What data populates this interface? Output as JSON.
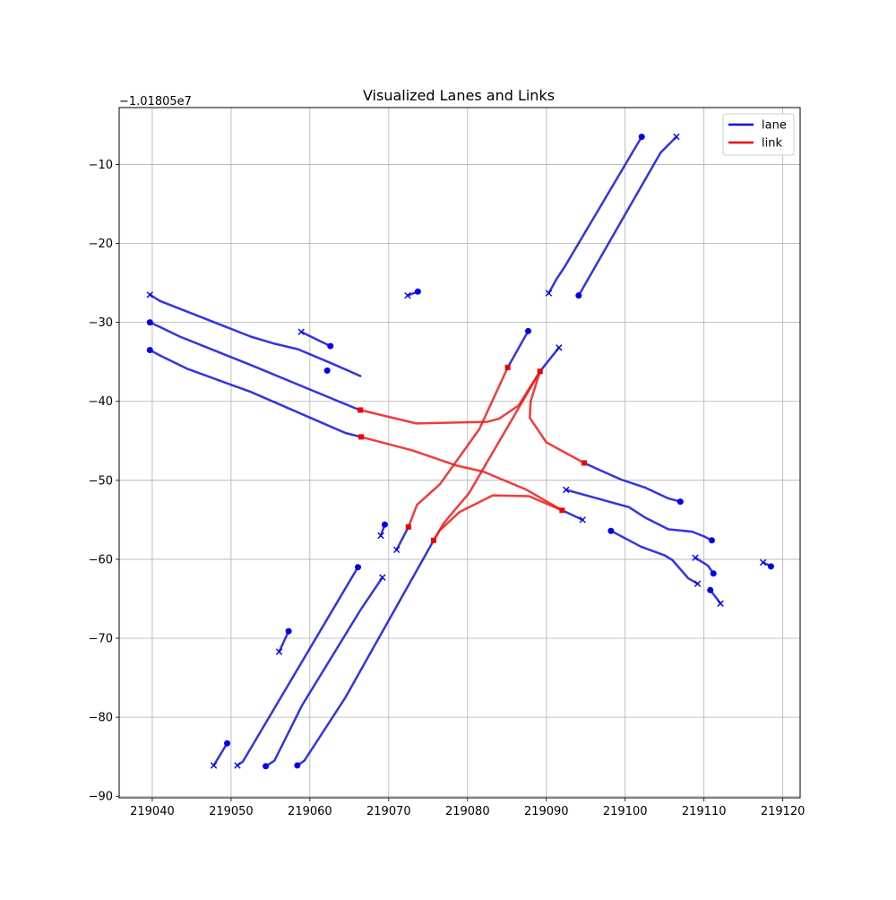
{
  "chart_data": {
    "type": "line",
    "title": "Visualized Lanes and Links",
    "xlabel": "",
    "ylabel": "",
    "y_offset_label": "−1.01805e7",
    "xlim": [
      219035.8,
      219122.2
    ],
    "ylim": [
      -90.2,
      -2.8
    ],
    "xticks": [
      219040,
      219050,
      219060,
      219070,
      219080,
      219090,
      219100,
      219110,
      219120
    ],
    "xtick_labels": [
      "219040",
      "219050",
      "219060",
      "219070",
      "219080",
      "219090",
      "219100",
      "219110",
      "219120"
    ],
    "yticks": [
      -90,
      -80,
      -70,
      -60,
      -50,
      -40,
      -30,
      -20,
      -10
    ],
    "ytick_labels": [
      "−90",
      "−80",
      "−70",
      "−60",
      "−50",
      "−40",
      "−30",
      "−20",
      "−10"
    ],
    "grid": true,
    "legend": {
      "placement": "top-right",
      "entries": [
        {
          "name": "lane",
          "color": "#0000ee"
        },
        {
          "name": "link",
          "color": "#ee0000"
        }
      ]
    },
    "colors": {
      "lane": "#1010e0",
      "link": "#ee1a1a"
    },
    "lanes": [
      {
        "points": [
          [
            219102.1,
            -6.5
          ],
          [
            219092.3,
            -23.0
          ],
          [
            219091.3,
            -24.5
          ],
          [
            219090.3,
            -26.3
          ]
        ]
      },
      {
        "points": [
          [
            219094.1,
            -26.6
          ],
          [
            219104.5,
            -8.5
          ],
          [
            219106.5,
            -6.5
          ]
        ]
      },
      {
        "points": [
          [
            219039.7,
            -26.5
          ],
          [
            219041.0,
            -27.3
          ],
          [
            219052.5,
            -31.8
          ],
          [
            219055.5,
            -32.7
          ],
          [
            219058.5,
            -33.4
          ],
          [
            219063.0,
            -35.3
          ],
          [
            219066.4,
            -36.8
          ]
        ]
      },
      {
        "points": [
          [
            219039.7,
            -30.0
          ],
          [
            219041.0,
            -30.6
          ],
          [
            219043.5,
            -31.8
          ],
          [
            219052.5,
            -35.4
          ],
          [
            219066.3,
            -41.1
          ]
        ]
      },
      {
        "points": [
          [
            219039.7,
            -33.5
          ],
          [
            219041.0,
            -34.2
          ],
          [
            219044.5,
            -35.9
          ],
          [
            219052.5,
            -38.8
          ],
          [
            219064.5,
            -44.0
          ],
          [
            219066.5,
            -44.5
          ]
        ]
      },
      {
        "points": [
          [
            219058.9,
            -31.2
          ],
          [
            219062.6,
            -33.0
          ]
        ]
      },
      {
        "points": [
          [
            219072.4,
            -26.6
          ],
          [
            219073.7,
            -26.1
          ]
        ]
      },
      {
        "points": [
          [
            219085.1,
            -35.7
          ],
          [
            219087.7,
            -31.1
          ]
        ]
      },
      {
        "points": [
          [
            219089.2,
            -36.2
          ],
          [
            219091.6,
            -33.2
          ]
        ]
      },
      {
        "points": [
          [
            219094.8,
            -47.8
          ],
          [
            219097.0,
            -48.8
          ],
          [
            219099.5,
            -49.9
          ],
          [
            219102.5,
            -50.9
          ],
          [
            219105.5,
            -52.3
          ],
          [
            219107.0,
            -52.7
          ]
        ]
      },
      {
        "points": [
          [
            219092.5,
            -51.2
          ],
          [
            219100.5,
            -53.4
          ],
          [
            219102.5,
            -54.7
          ],
          [
            219105.5,
            -56.2
          ],
          [
            219108.5,
            -56.5
          ],
          [
            219110.0,
            -57.1
          ],
          [
            219111.0,
            -57.6
          ]
        ]
      },
      {
        "points": [
          [
            219092.0,
            -53.8
          ],
          [
            219094.6,
            -55.0
          ]
        ]
      },
      {
        "points": [
          [
            219098.2,
            -56.4
          ],
          [
            219102.0,
            -58.4
          ],
          [
            219105.0,
            -59.5
          ],
          [
            219106.0,
            -60.1
          ],
          [
            219108.0,
            -62.4
          ],
          [
            219109.2,
            -63.1
          ]
        ]
      },
      {
        "points": [
          [
            219108.9,
            -59.8
          ],
          [
            219110.5,
            -60.8
          ],
          [
            219111.2,
            -61.8
          ]
        ]
      },
      {
        "points": [
          [
            219110.8,
            -63.9
          ],
          [
            219112.1,
            -65.6
          ]
        ]
      },
      {
        "points": [
          [
            219117.5,
            -60.4
          ],
          [
            219118.5,
            -60.9
          ]
        ]
      },
      {
        "points": [
          [
            219069.5,
            -55.6
          ],
          [
            219069.0,
            -57.0
          ]
        ]
      },
      {
        "points": [
          [
            219072.5,
            -55.9
          ],
          [
            219071.0,
            -58.8
          ]
        ]
      },
      {
        "points": [
          [
            219066.1,
            -61.0
          ],
          [
            219051.5,
            -85.6
          ],
          [
            219050.8,
            -86.1
          ]
        ]
      },
      {
        "points": [
          [
            219069.2,
            -62.3
          ],
          [
            219066.5,
            -66.3
          ],
          [
            219059.0,
            -78.5
          ],
          [
            219055.5,
            -85.5
          ],
          [
            219054.4,
            -86.2
          ]
        ]
      },
      {
        "points": [
          [
            219075.7,
            -57.6
          ],
          [
            219064.5,
            -77.5
          ],
          [
            219059.3,
            -85.5
          ],
          [
            219058.4,
            -86.1
          ]
        ]
      },
      {
        "points": [
          [
            219057.3,
            -69.1
          ],
          [
            219056.1,
            -71.7
          ]
        ]
      },
      {
        "points": [
          [
            219049.5,
            -83.3
          ],
          [
            219047.8,
            -86.1
          ]
        ]
      }
    ],
    "lane_start_markers": [
      [
        219102.1,
        -6.5
      ],
      [
        219094.1,
        -26.6
      ],
      [
        219039.7,
        -30.0
      ],
      [
        219039.7,
        -33.5
      ],
      [
        219062.6,
        -33.0
      ],
      [
        219062.2,
        -36.1
      ],
      [
        219073.7,
        -26.1
      ],
      [
        219087.7,
        -31.1
      ],
      [
        219107.0,
        -52.7
      ],
      [
        219111.0,
        -57.6
      ],
      [
        219098.2,
        -56.4
      ],
      [
        219111.2,
        -61.8
      ],
      [
        219110.8,
        -63.9
      ],
      [
        219118.5,
        -60.9
      ],
      [
        219069.5,
        -55.6
      ],
      [
        219066.1,
        -61.0
      ],
      [
        219057.3,
        -69.1
      ],
      [
        219049.5,
        -83.3
      ],
      [
        219054.4,
        -86.2
      ],
      [
        219058.4,
        -86.1
      ]
    ],
    "lane_end_markers": [
      [
        219106.5,
        -6.5
      ],
      [
        219090.3,
        -26.3
      ],
      [
        219039.7,
        -26.5
      ],
      [
        219058.9,
        -31.2
      ],
      [
        219072.4,
        -26.6
      ],
      [
        219091.6,
        -33.2
      ],
      [
        219092.5,
        -51.2
      ],
      [
        219094.6,
        -55.0
      ],
      [
        219108.9,
        -59.8
      ],
      [
        219109.2,
        -63.1
      ],
      [
        219112.1,
        -65.6
      ],
      [
        219117.5,
        -60.4
      ],
      [
        219069.0,
        -57.0
      ],
      [
        219071.0,
        -58.8
      ],
      [
        219069.2,
        -62.3
      ],
      [
        219056.1,
        -71.7
      ],
      [
        219047.8,
        -86.1
      ],
      [
        219050.8,
        -86.1
      ]
    ],
    "links": [
      {
        "points": [
          [
            219066.4,
            -41.1
          ],
          [
            219073.5,
            -42.8
          ],
          [
            219082.5,
            -42.6
          ],
          [
            219084.0,
            -42.2
          ],
          [
            219086.5,
            -40.5
          ],
          [
            219089.2,
            -36.2
          ]
        ]
      },
      {
        "points": [
          [
            219066.5,
            -44.5
          ],
          [
            219073.0,
            -46.2
          ],
          [
            219078.5,
            -48.1
          ],
          [
            219082.0,
            -48.9
          ],
          [
            219087.5,
            -51.2
          ],
          [
            219092.0,
            -53.8
          ]
        ]
      },
      {
        "points": [
          [
            219072.5,
            -55.9
          ],
          [
            219073.6,
            -53.1
          ],
          [
            219076.5,
            -50.5
          ],
          [
            219081.5,
            -43.5
          ],
          [
            219085.1,
            -35.7
          ]
        ]
      },
      {
        "points": [
          [
            219075.7,
            -57.6
          ],
          [
            219077.0,
            -55.4
          ],
          [
            219080.2,
            -51.6
          ],
          [
            219089.2,
            -36.2
          ]
        ]
      },
      {
        "points": [
          [
            219075.7,
            -57.6
          ],
          [
            219076.5,
            -56.3
          ],
          [
            219079.0,
            -54.0
          ],
          [
            219083.2,
            -51.9
          ],
          [
            219087.8,
            -52.0
          ],
          [
            219092.0,
            -53.8
          ]
        ]
      },
      {
        "points": [
          [
            219089.2,
            -36.2
          ],
          [
            219088.0,
            -40.0
          ],
          [
            219087.9,
            -42.1
          ],
          [
            219090.0,
            -45.2
          ],
          [
            219094.8,
            -47.8
          ]
        ]
      }
    ],
    "link_markers": [
      [
        219066.4,
        -41.1
      ],
      [
        219066.5,
        -44.5
      ],
      [
        219085.1,
        -35.7
      ],
      [
        219089.2,
        -36.2
      ],
      [
        219072.5,
        -55.9
      ],
      [
        219075.7,
        -57.6
      ],
      [
        219092.0,
        -53.8
      ],
      [
        219094.8,
        -47.8
      ]
    ]
  }
}
